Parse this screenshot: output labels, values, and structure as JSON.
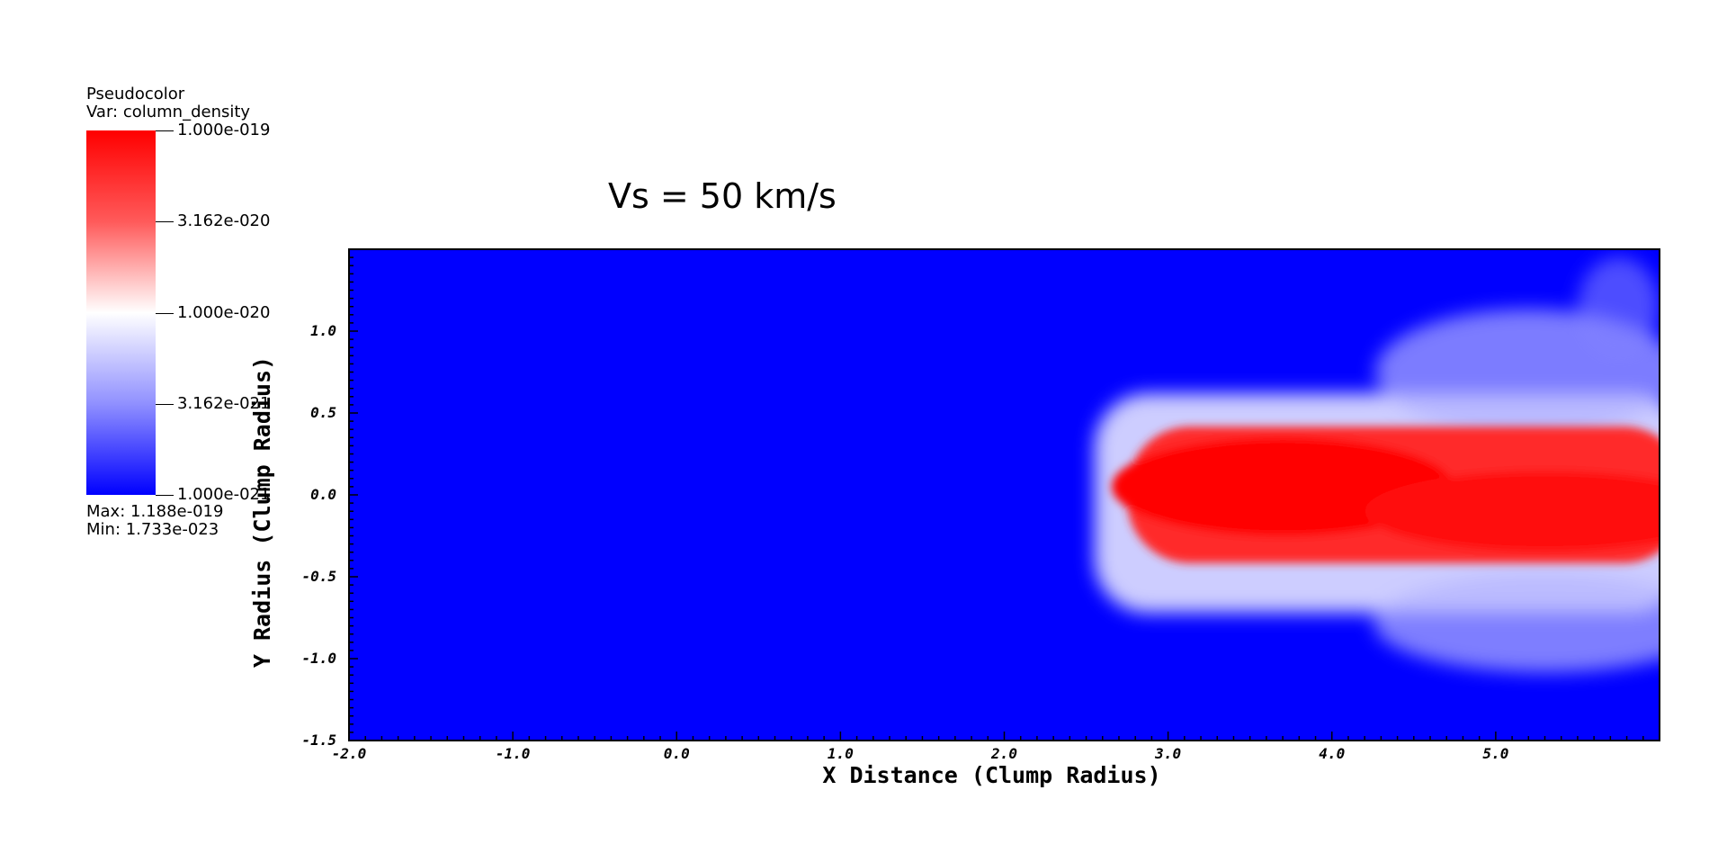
{
  "legend": {
    "plot_type": "Pseudocolor",
    "var_label": "Var: column_density",
    "ticks": [
      "1.000e-019",
      "3.162e-020",
      "1.000e-020",
      "3.162e-021",
      "1.000e-021"
    ],
    "max_label": "Max:  1.188e-019",
    "min_label": "Min:  1.733e-023",
    "colors": {
      "high": "#ff0000",
      "mid": "#ffffff",
      "low": "#0000ff"
    }
  },
  "chart_data": {
    "type": "heatmap",
    "title": "Vs = 50 km/s",
    "xlabel": "X Distance (Clump Radius)",
    "ylabel": "Y Radius (Clump Radius)",
    "xlim": [
      -2.0,
      6.0
    ],
    "ylim": [
      -1.5,
      1.5
    ],
    "xticks": [
      "-2.0",
      "-1.0",
      "0.0",
      "1.0",
      "2.0",
      "3.0",
      "4.0",
      "5.0"
    ],
    "yticks": [
      "-1.5",
      "-1.0",
      "-0.5",
      "0.0",
      "0.5",
      "1.0"
    ],
    "variable": "column_density",
    "scale": "log",
    "color_range": [
      1e-21,
      1e-19
    ],
    "background_color": "#0000ff",
    "dense_region": {
      "x_start": 2.75,
      "x_end": 6.0,
      "y_center": 0.0,
      "half_width": 0.45
    },
    "diffuse_region": {
      "x_start": 2.55,
      "x_end": 6.0,
      "y_min": -1.0,
      "y_max": 1.4
    }
  }
}
